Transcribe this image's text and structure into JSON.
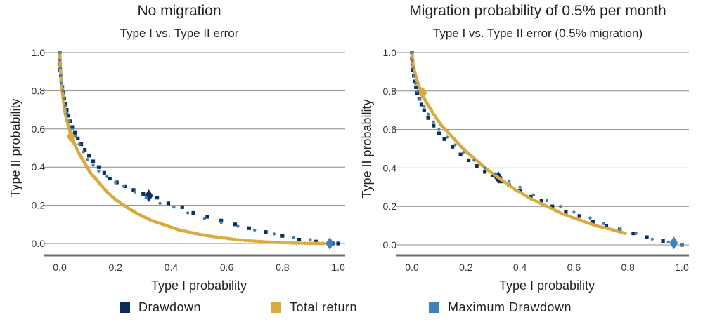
{
  "colors": {
    "drawdown": "#0d2e5c",
    "total_return": "#dcaa3a",
    "max_drawdown": "#3d82bd",
    "grid": "#8c8c8c",
    "axis": "#6e6e6e"
  },
  "legend": {
    "items": [
      {
        "label": "Drawdown",
        "color": "#0d2e5c"
      },
      {
        "label": "Total return",
        "color": "#dcaa3a"
      },
      {
        "label": "Maximum Drawdown",
        "color": "#3d82bd"
      }
    ]
  },
  "chart_data": [
    {
      "type": "scatter",
      "title": "No migration",
      "subtitle": "Type I vs. Type II error",
      "xlabel": "Type I probability",
      "ylabel": "Type II probability",
      "xlim": [
        0,
        1
      ],
      "ylim": [
        0,
        1
      ],
      "xticks": [
        "0.0",
        "0.2",
        "0.4",
        "0.6",
        "0.8",
        "1.0"
      ],
      "yticks": [
        "0.0",
        "0.2",
        "0.4",
        "0.6",
        "0.8",
        "1.0"
      ],
      "grid": "horizontal",
      "series": [
        {
          "name": "Drawdown",
          "marker": "square",
          "points": [
            [
              0.0,
              1.0
            ],
            [
              0.0,
              0.97
            ],
            [
              0.001,
              0.94
            ],
            [
              0.002,
              0.91
            ],
            [
              0.004,
              0.88
            ],
            [
              0.006,
              0.85
            ],
            [
              0.009,
              0.82
            ],
            [
              0.012,
              0.79
            ],
            [
              0.016,
              0.76
            ],
            [
              0.02,
              0.73
            ],
            [
              0.025,
              0.7
            ],
            [
              0.03,
              0.67
            ],
            [
              0.037,
              0.64
            ],
            [
              0.045,
              0.61
            ],
            [
              0.054,
              0.58
            ],
            [
              0.065,
              0.55
            ],
            [
              0.077,
              0.52
            ],
            [
              0.09,
              0.49
            ],
            [
              0.105,
              0.46
            ],
            [
              0.12,
              0.43
            ],
            [
              0.14,
              0.4
            ],
            [
              0.16,
              0.37
            ],
            [
              0.18,
              0.34
            ],
            [
              0.205,
              0.32
            ],
            [
              0.235,
              0.3
            ],
            [
              0.265,
              0.28
            ],
            [
              0.3,
              0.26
            ],
            [
              0.35,
              0.24
            ],
            [
              0.39,
              0.21
            ],
            [
              0.44,
              0.19
            ],
            [
              0.48,
              0.16
            ],
            [
              0.53,
              0.14
            ],
            [
              0.58,
              0.12
            ],
            [
              0.63,
              0.1
            ],
            [
              0.68,
              0.08
            ],
            [
              0.74,
              0.06
            ],
            [
              0.8,
              0.04
            ],
            [
              0.86,
              0.02
            ],
            [
              0.92,
              0.01
            ],
            [
              0.98,
              0.0
            ],
            [
              1.0,
              0.0
            ]
          ],
          "highlight": [
            0.32,
            0.25
          ]
        },
        {
          "name": "Total return",
          "marker": "curve",
          "points": [
            [
              0.0,
              1.0
            ],
            [
              0.002,
              0.93
            ],
            [
              0.005,
              0.86
            ],
            [
              0.01,
              0.79
            ],
            [
              0.015,
              0.73
            ],
            [
              0.02,
              0.68
            ],
            [
              0.03,
              0.62
            ],
            [
              0.04,
              0.57
            ],
            [
              0.05,
              0.53
            ],
            [
              0.07,
              0.47
            ],
            [
              0.09,
              0.42
            ],
            [
              0.11,
              0.37
            ],
            [
              0.14,
              0.32
            ],
            [
              0.17,
              0.27
            ],
            [
              0.2,
              0.23
            ],
            [
              0.24,
              0.19
            ],
            [
              0.28,
              0.155
            ],
            [
              0.33,
              0.12
            ],
            [
              0.38,
              0.095
            ],
            [
              0.43,
              0.07
            ],
            [
              0.5,
              0.048
            ],
            [
              0.57,
              0.032
            ],
            [
              0.65,
              0.018
            ],
            [
              0.73,
              0.009
            ],
            [
              0.8,
              0.004
            ],
            [
              0.88,
              0.001
            ],
            [
              0.95,
              0.0
            ]
          ],
          "highlight": [
            0.04,
            0.56
          ]
        },
        {
          "name": "Maximum Drawdown",
          "marker": "dot",
          "points": [
            [
              0.0,
              1.0
            ],
            [
              0.0,
              0.96
            ],
            [
              0.002,
              0.92
            ],
            [
              0.004,
              0.88
            ],
            [
              0.007,
              0.84
            ],
            [
              0.011,
              0.8
            ],
            [
              0.015,
              0.76
            ],
            [
              0.02,
              0.72
            ],
            [
              0.027,
              0.68
            ],
            [
              0.035,
              0.64
            ],
            [
              0.045,
              0.6
            ],
            [
              0.057,
              0.56
            ],
            [
              0.07,
              0.52
            ],
            [
              0.085,
              0.48
            ],
            [
              0.1,
              0.44
            ],
            [
              0.12,
              0.41
            ],
            [
              0.14,
              0.38
            ],
            [
              0.17,
              0.35
            ],
            [
              0.2,
              0.32
            ],
            [
              0.23,
              0.3
            ],
            [
              0.27,
              0.27
            ],
            [
              0.31,
              0.24
            ],
            [
              0.36,
              0.21
            ],
            [
              0.41,
              0.19
            ],
            [
              0.46,
              0.16
            ],
            [
              0.52,
              0.13
            ],
            [
              0.58,
              0.11
            ],
            [
              0.64,
              0.09
            ],
            [
              0.7,
              0.07
            ],
            [
              0.77,
              0.05
            ],
            [
              0.84,
              0.03
            ],
            [
              0.9,
              0.02
            ],
            [
              0.97,
              0.0
            ]
          ],
          "highlight": [
            0.97,
            0.0
          ]
        }
      ]
    },
    {
      "type": "scatter",
      "title": "Migration probability of 0.5% per month",
      "subtitle": "Type I vs. Type II error (0.5% migration)",
      "xlabel": "Type I probability",
      "ylabel": "Type II probability",
      "xlim": [
        0,
        1
      ],
      "ylim": [
        0,
        1
      ],
      "xticks": [
        "0.0",
        "0.2",
        "0.4",
        "0.6",
        "0.8",
        "1.0"
      ],
      "yticks": [
        "0.0",
        "0.2",
        "0.4",
        "0.6",
        "0.8",
        "1.0"
      ],
      "grid": "horizontal",
      "series": [
        {
          "name": "Drawdown",
          "marker": "square",
          "points": [
            [
              0.0,
              1.0
            ],
            [
              0.0,
              0.97
            ],
            [
              0.002,
              0.94
            ],
            [
              0.004,
              0.91
            ],
            [
              0.007,
              0.88
            ],
            [
              0.01,
              0.85
            ],
            [
              0.015,
              0.82
            ],
            [
              0.02,
              0.79
            ],
            [
              0.027,
              0.76
            ],
            [
              0.035,
              0.73
            ],
            [
              0.045,
              0.7
            ],
            [
              0.06,
              0.66
            ],
            [
              0.08,
              0.62
            ],
            [
              0.1,
              0.58
            ],
            [
              0.12,
              0.55
            ],
            [
              0.15,
              0.51
            ],
            [
              0.18,
              0.47
            ],
            [
              0.21,
              0.44
            ],
            [
              0.24,
              0.41
            ],
            [
              0.27,
              0.38
            ],
            [
              0.3,
              0.36
            ],
            [
              0.33,
              0.33
            ],
            [
              0.36,
              0.31
            ],
            [
              0.4,
              0.28
            ],
            [
              0.44,
              0.25
            ],
            [
              0.48,
              0.23
            ],
            [
              0.52,
              0.2
            ],
            [
              0.57,
              0.17
            ],
            [
              0.62,
              0.15
            ],
            [
              0.67,
              0.12
            ],
            [
              0.72,
              0.1
            ],
            [
              0.77,
              0.08
            ],
            [
              0.82,
              0.06
            ],
            [
              0.87,
              0.04
            ],
            [
              0.93,
              0.02
            ],
            [
              1.0,
              0.0
            ]
          ],
          "highlight": [
            0.32,
            0.35
          ]
        },
        {
          "name": "Total return",
          "marker": "curve",
          "points": [
            [
              0.0,
              1.0
            ],
            [
              0.005,
              0.93
            ],
            [
              0.015,
              0.87
            ],
            [
              0.03,
              0.81
            ],
            [
              0.05,
              0.75
            ],
            [
              0.08,
              0.68
            ],
            [
              0.11,
              0.62
            ],
            [
              0.15,
              0.56
            ],
            [
              0.19,
              0.5
            ],
            [
              0.23,
              0.45
            ],
            [
              0.28,
              0.39
            ],
            [
              0.33,
              0.34
            ],
            [
              0.38,
              0.29
            ],
            [
              0.44,
              0.24
            ],
            [
              0.5,
              0.2
            ],
            [
              0.56,
              0.16
            ],
            [
              0.62,
              0.13
            ],
            [
              0.68,
              0.1
            ],
            [
              0.74,
              0.08
            ],
            [
              0.79,
              0.06
            ]
          ],
          "highlight": [
            0.04,
            0.79
          ]
        },
        {
          "name": "Maximum Drawdown",
          "marker": "dot",
          "points": [
            [
              0.0,
              1.0
            ],
            [
              0.001,
              0.96
            ],
            [
              0.004,
              0.92
            ],
            [
              0.008,
              0.88
            ],
            [
              0.013,
              0.84
            ],
            [
              0.02,
              0.8
            ],
            [
              0.03,
              0.76
            ],
            [
              0.045,
              0.72
            ],
            [
              0.06,
              0.68
            ],
            [
              0.08,
              0.64
            ],
            [
              0.1,
              0.6
            ],
            [
              0.13,
              0.56
            ],
            [
              0.16,
              0.52
            ],
            [
              0.19,
              0.48
            ],
            [
              0.23,
              0.44
            ],
            [
              0.27,
              0.4
            ],
            [
              0.31,
              0.37
            ],
            [
              0.36,
              0.33
            ],
            [
              0.4,
              0.3
            ],
            [
              0.45,
              0.26
            ],
            [
              0.5,
              0.23
            ],
            [
              0.55,
              0.2
            ],
            [
              0.6,
              0.17
            ],
            [
              0.66,
              0.14
            ],
            [
              0.71,
              0.11
            ],
            [
              0.77,
              0.08
            ],
            [
              0.83,
              0.06
            ],
            [
              0.89,
              0.03
            ],
            [
              0.95,
              0.015
            ],
            [
              1.0,
              0.0
            ]
          ],
          "highlight": [
            0.97,
            0.01
          ]
        }
      ]
    }
  ]
}
